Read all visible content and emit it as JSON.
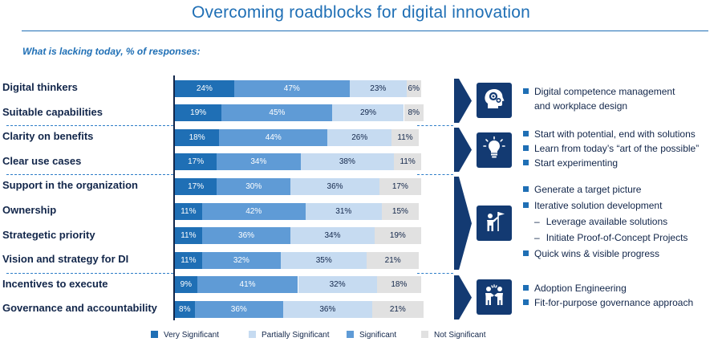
{
  "title": "Overcoming roadblocks for digital innovation",
  "subtitle": "What is lacking today, % of responses:",
  "colors": {
    "very_significant": "#1f6fb5",
    "significant": "#5f9bd6",
    "partially_significant": "#c6dbf1",
    "not_significant": "#e1e1e1",
    "accent_dark": "#133a72"
  },
  "chart_data": {
    "type": "bar",
    "orientation": "horizontal",
    "stacked": true,
    "percent": true,
    "categories": [
      "Digital thinkers",
      "Suitable capabilities",
      "Clarity on benefits",
      "Clear use cases",
      "Support in the organization",
      "Ownership",
      "Strategetic priority",
      "Vision and strategy for DI",
      "Incentives to execute",
      "Governance and accountability"
    ],
    "series": [
      {
        "name": "Very Significant",
        "color": "#1f6fb5",
        "values": [
          24,
          19,
          18,
          17,
          17,
          11,
          11,
          11,
          9,
          8
        ]
      },
      {
        "name": "Significant",
        "color": "#5f9bd6",
        "values": [
          47,
          45,
          44,
          34,
          30,
          42,
          36,
          32,
          41,
          36
        ]
      },
      {
        "name": "Partially Significant",
        "color": "#c6dbf1",
        "values": [
          23,
          29,
          26,
          38,
          36,
          31,
          34,
          35,
          32,
          36
        ]
      },
      {
        "name": "Not Significant",
        "color": "#e1e1e1",
        "values": [
          6,
          8,
          11,
          11,
          17,
          15,
          19,
          21,
          18,
          21
        ]
      }
    ],
    "groups": [
      [
        0,
        1
      ],
      [
        2,
        3
      ],
      [
        4,
        5,
        6,
        7
      ],
      [
        8,
        9
      ]
    ],
    "legend": {
      "position": "bottom",
      "items": [
        "Very Significant",
        "Partially Significant",
        "Significant",
        "Not Significant"
      ]
    }
  },
  "recommendations": [
    {
      "icon": "head-gear-icon",
      "bullets": [
        {
          "text": "Digital competence management",
          "type": "bullet"
        },
        {
          "text": "and workplace design",
          "type": "continuation"
        }
      ]
    },
    {
      "icon": "lightbulb-icon",
      "bullets": [
        {
          "text": "Start with potential, end with solutions",
          "type": "bullet"
        },
        {
          "text": "Learn from today’s “art of the possible”",
          "type": "bullet"
        },
        {
          "text": "Start experimenting",
          "type": "bullet"
        }
      ]
    },
    {
      "icon": "person-flag-icon",
      "bullets": [
        {
          "text": "Generate a target picture",
          "type": "bullet"
        },
        {
          "text": "Iterative solution development",
          "type": "bullet"
        },
        {
          "text": "Leverage available solutions",
          "type": "sub"
        },
        {
          "text": "Initiate Proof-of-Concept Projects",
          "type": "sub"
        },
        {
          "text": "Quick wins & visible progress",
          "type": "bullet"
        }
      ]
    },
    {
      "icon": "people-collaboration-icon",
      "bullets": [
        {
          "text": "Adoption Engineering",
          "type": "bullet"
        },
        {
          "text": "Fit-for-purpose governance approach",
          "type": "bullet"
        }
      ]
    }
  ]
}
